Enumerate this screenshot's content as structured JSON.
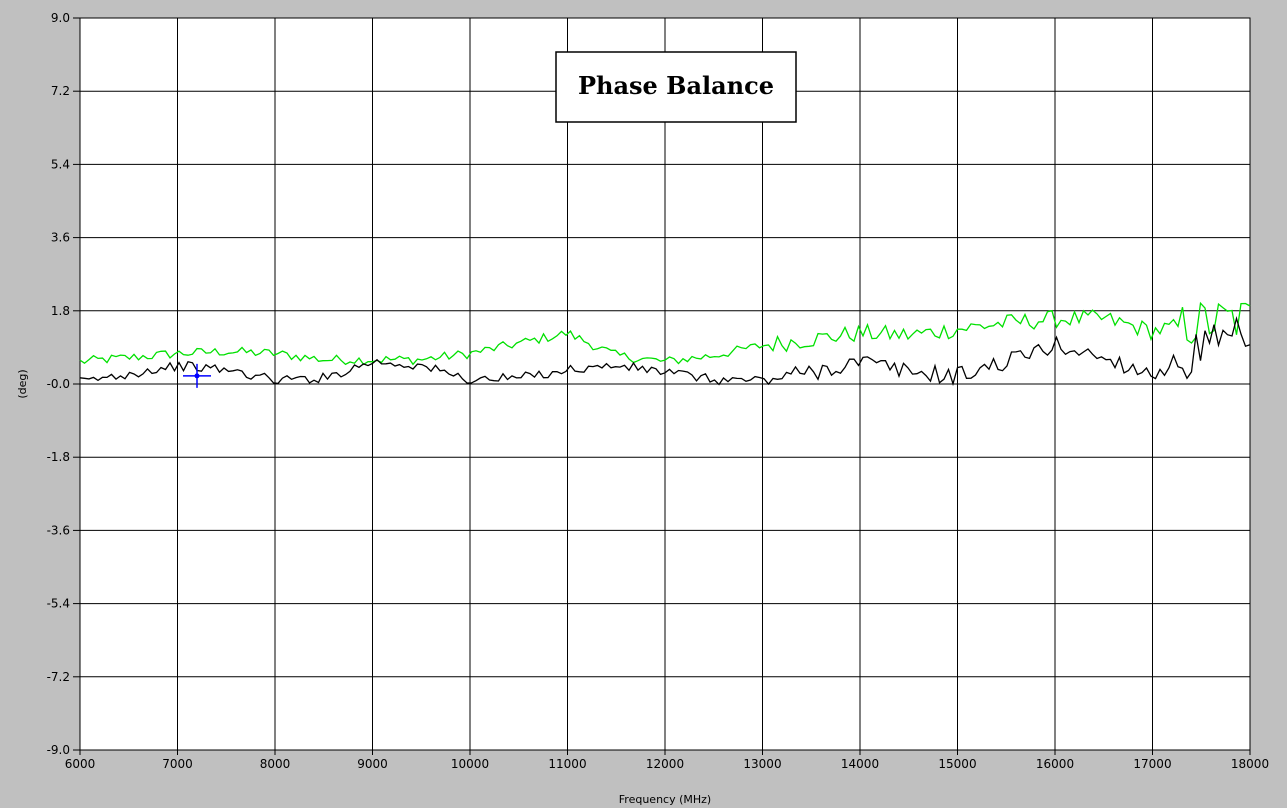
{
  "chart_data": {
    "type": "line",
    "title": "Phase Balance",
    "xlabel": "Frequency (MHz)",
    "ylabel": "(deg)",
    "xlim": [
      6000,
      18000
    ],
    "ylim": [
      -9.0,
      9.0
    ],
    "x_ticks": [
      6000,
      7000,
      8000,
      9000,
      10000,
      11000,
      12000,
      13000,
      14000,
      15000,
      16000,
      17000,
      18000
    ],
    "x_tick_labels": [
      "6000",
      "7000",
      "8000",
      "9000",
      "10000",
      "11000",
      "12000",
      "13000",
      "14000",
      "15000",
      "16000",
      "17000",
      "18000"
    ],
    "y_ticks": [
      9.0,
      7.2,
      5.4,
      3.6,
      1.8,
      0.0,
      -1.8,
      -3.6,
      -5.4,
      -7.2,
      -9.0
    ],
    "y_tick_labels": [
      "9.0",
      "7.2",
      "5.4",
      "3.6",
      "1.8",
      "-0.0",
      "-1.8",
      "-3.6",
      "-5.4",
      "-7.2",
      "-9.0"
    ],
    "grid": true,
    "colors": {
      "plot_background": "#ffffff",
      "frame_background": "#c0c0c0",
      "grid": "#000000",
      "series_green": "#00e000",
      "series_black": "#000000",
      "cursor": "#0000ff"
    },
    "cursor": {
      "x": 7200,
      "y": 0.2
    },
    "series": [
      {
        "color": "#00e000",
        "x": [
          6000,
          6500,
          7000,
          7500,
          8000,
          8500,
          9000,
          9500,
          10000,
          10500,
          11000,
          11500,
          12000,
          12500,
          13000,
          13500,
          14000,
          14500,
          15000,
          15500,
          16000,
          16500,
          17000,
          17500,
          18000
        ],
        "y": [
          0.55,
          0.65,
          0.75,
          0.8,
          0.75,
          0.6,
          0.6,
          0.6,
          0.75,
          1.0,
          1.25,
          0.7,
          0.55,
          0.7,
          0.95,
          1.1,
          1.25,
          1.2,
          1.35,
          1.5,
          1.6,
          1.6,
          1.3,
          1.5,
          1.6
        ]
      },
      {
        "color": "#000000",
        "x": [
          6000,
          6500,
          7000,
          7500,
          8000,
          8500,
          9000,
          9500,
          10000,
          10500,
          11000,
          11500,
          12000,
          12500,
          13000,
          13500,
          14000,
          14500,
          15000,
          15500,
          16000,
          16500,
          17000,
          17500,
          18000
        ],
        "y": [
          0.05,
          0.25,
          0.45,
          0.35,
          0.1,
          0.15,
          0.55,
          0.45,
          0.1,
          0.15,
          0.35,
          0.45,
          0.3,
          0.1,
          0.1,
          0.3,
          0.55,
          0.3,
          0.2,
          0.55,
          0.95,
          0.65,
          0.25,
          0.8,
          1.1
        ]
      }
    ]
  }
}
